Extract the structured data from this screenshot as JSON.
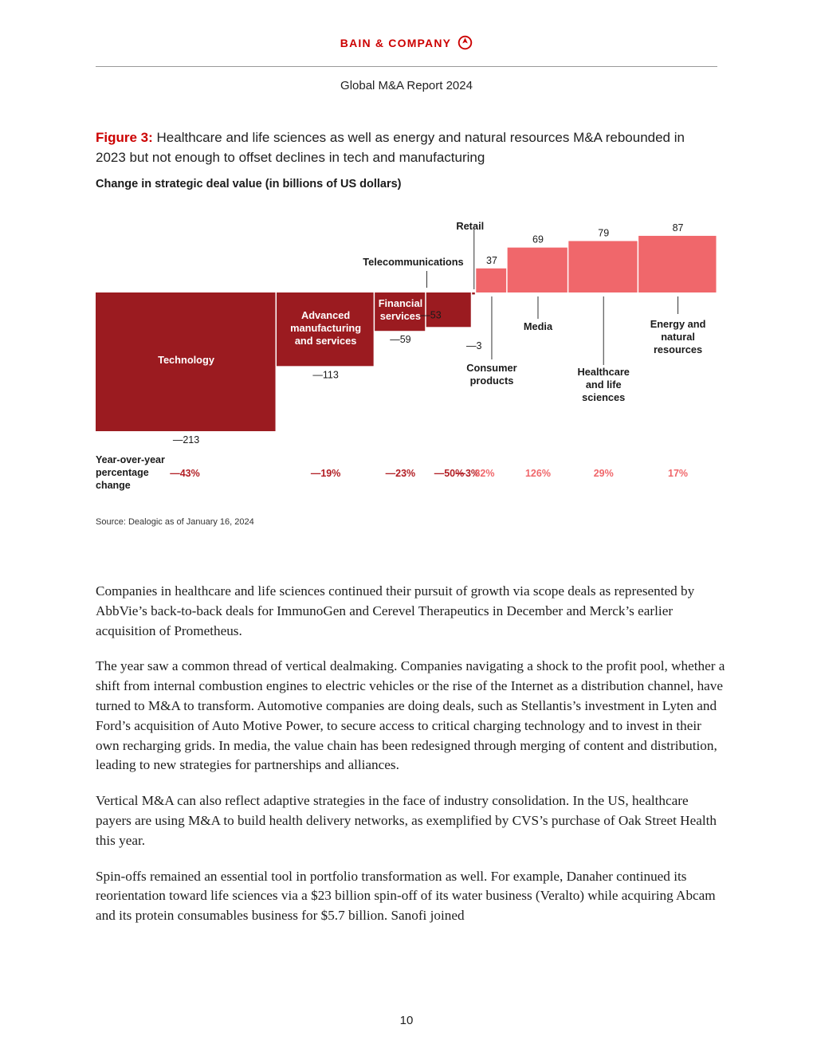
{
  "header": {
    "brand": "BAIN & COMPANY",
    "report_title": "Global M&A Report 2024"
  },
  "figure": {
    "label": "Figure 3:",
    "caption": "Healthcare and life sciences as well as energy and natural resources M&A rebounded in 2023 but not enough to offset declines in tech and manufacturing",
    "subtitle": "Change in strategic deal value (in billions of US dollars)",
    "source": "Source: Dealogic as of January 16, 2024"
  },
  "chart_data": {
    "type": "bar",
    "colors": {
      "negative": "#9b1b20",
      "positive": "#f0676b",
      "negative_text": "#b21e24",
      "positive_text": "#f0676b"
    },
    "row_label": "Year-over-year percentage change",
    "categories": [
      {
        "name": "Technology",
        "value": -213,
        "value_label": "—213",
        "pct": "—43%",
        "share": 225
      },
      {
        "name": "Advanced manufacturing and services",
        "value": -113,
        "value_label": "—113",
        "pct": "—19%",
        "share": 122
      },
      {
        "name": "Financial services",
        "value": -59,
        "value_label": "—59",
        "pct": "—23%",
        "share": 64
      },
      {
        "name": "Telecommunications",
        "value": -53,
        "value_label": "—53",
        "pct": "—50%",
        "share": 57
      },
      {
        "name": "Retail",
        "value": -3,
        "value_label": "—3",
        "pct": "—3%",
        "share": 5
      },
      {
        "name": "Consumer products",
        "value": 37,
        "value_label": "37",
        "pct": "32%",
        "share": 39
      },
      {
        "name": "Media",
        "value": 69,
        "value_label": "69",
        "pct": "126%",
        "share": 76
      },
      {
        "name": "Healthcare and life sciences",
        "value": 79,
        "value_label": "79",
        "pct": "29%",
        "share": 87
      },
      {
        "name": "Energy and natural resources",
        "value": 87,
        "value_label": "87",
        "pct": "17%",
        "share": 98
      }
    ]
  },
  "body": {
    "paragraphs": [
      "Companies in healthcare and life sciences continued their pursuit of growth via scope deals as represented by AbbVie’s back-to-back deals for ImmunoGen and Cerevel Therapeutics in December and Merck’s earlier acquisition of Prometheus.",
      "The year saw a common thread of vertical dealmaking. Companies navigating a shock to the profit pool, whether a shift from internal combustion engines to electric vehicles or the rise of the Internet as a distribution channel, have turned to M&A to transform. Automotive companies are doing deals, such as Stellantis’s investment in Lyten and Ford’s acquisition of Auto Motive Power, to secure access to critical charging technology and to invest in their own recharging grids. In media, the value chain has been redesigned through merging of content and distribution, leading to new strategies for partnerships and alliances.",
      "Vertical M&A can also reflect adaptive strategies in the face of industry consolidation. In the US, healthcare payers are using M&A to build health delivery networks, as exemplified by CVS’s purchase of Oak Street Health this year.",
      "Spin-offs remained an essential tool in portfolio transformation as well. For example, Danaher continued its reorientation toward life sciences via a $23 billion spin-off of its water business (Veralto) while acquiring Abcam and its protein consumables business for $5.7 billion. Sanofi joined"
    ]
  },
  "footer": {
    "page_number": "10"
  }
}
